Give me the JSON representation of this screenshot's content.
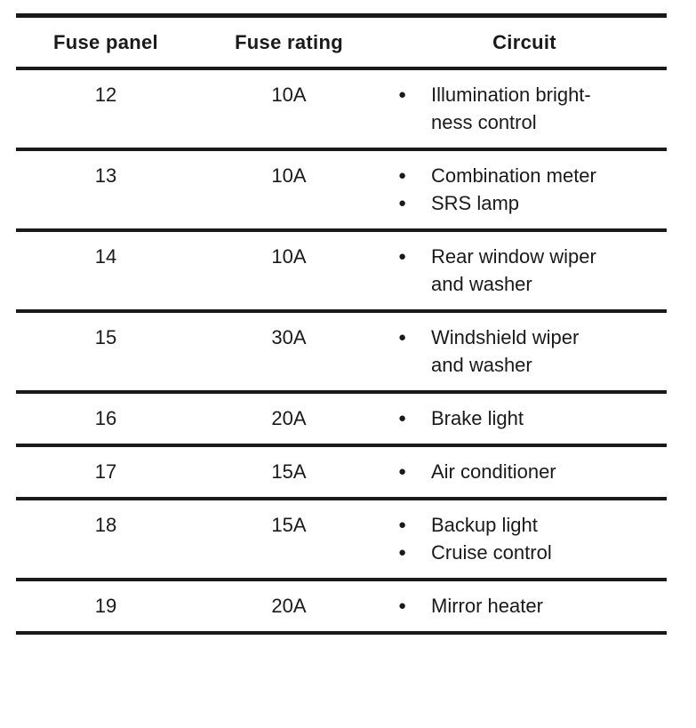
{
  "page": {
    "background_color": "#ffffff",
    "text_color": "#1a1a1a",
    "rule_color": "#1a1a1a"
  },
  "table": {
    "bullet_icon": "●",
    "headers": [
      "Fuse panel",
      "Fuse rating",
      "Circuit"
    ],
    "rows": [
      {
        "fuse_panel": "12",
        "fuse_rating": "10A",
        "circuits": [
          "Illumination bright-\nness control"
        ]
      },
      {
        "fuse_panel": "13",
        "fuse_rating": "10A",
        "circuits": [
          "Combination meter",
          "SRS lamp"
        ]
      },
      {
        "fuse_panel": "14",
        "fuse_rating": "10A",
        "circuits": [
          "Rear window wiper\nand washer"
        ]
      },
      {
        "fuse_panel": "15",
        "fuse_rating": "30A",
        "circuits": [
          "Windshield wiper\nand washer"
        ]
      },
      {
        "fuse_panel": "16",
        "fuse_rating": "20A",
        "circuits": [
          "Brake light"
        ]
      },
      {
        "fuse_panel": "17",
        "fuse_rating": "15A",
        "circuits": [
          "Air conditioner"
        ]
      },
      {
        "fuse_panel": "18",
        "fuse_rating": "15A",
        "circuits": [
          "Backup light",
          "Cruise control"
        ]
      },
      {
        "fuse_panel": "19",
        "fuse_rating": "20A",
        "circuits": [
          "Mirror heater"
        ]
      }
    ]
  }
}
